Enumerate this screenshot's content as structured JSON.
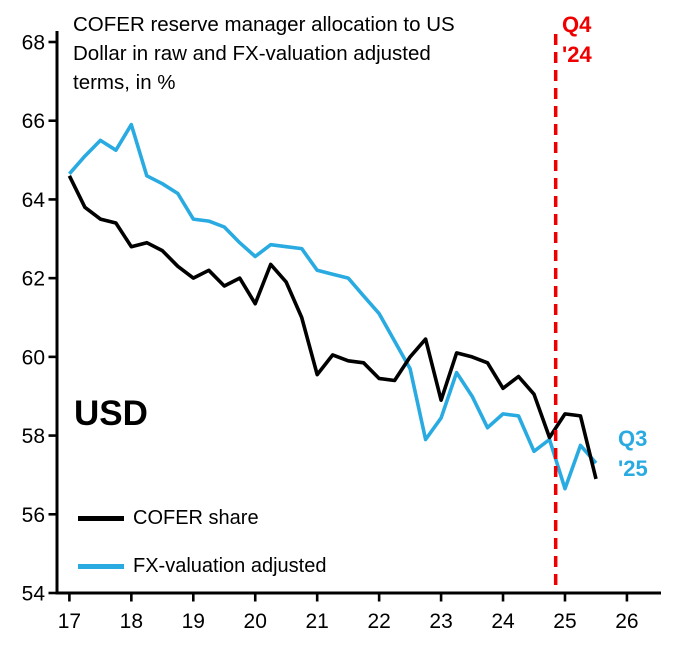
{
  "title": "COFER reserve manager allocation to US\nDollar in raw and FX-valuation adjusted\nterms, in %",
  "labels": {
    "usd": "USD"
  },
  "annotations": {
    "q4": {
      "line1": "Q4",
      "line2": "'24",
      "color": "#ee0000"
    },
    "q3": {
      "line1": "Q3",
      "line2": "'25",
      "color": "#29abe2"
    }
  },
  "chart_data": {
    "type": "line",
    "title": "COFER reserve manager allocation to US Dollar in raw and FX-valuation adjusted terms, in %",
    "xlabel": "",
    "ylabel": "",
    "x": [
      17.0,
      17.25,
      17.5,
      17.75,
      18.0,
      18.25,
      18.5,
      18.75,
      19.0,
      19.25,
      19.5,
      19.75,
      20.0,
      20.25,
      20.5,
      20.75,
      21.0,
      21.25,
      21.5,
      21.75,
      22.0,
      22.25,
      22.5,
      22.75,
      23.0,
      23.25,
      23.5,
      23.75,
      24.0,
      24.25,
      24.5,
      24.75,
      25.0,
      25.25,
      25.5
    ],
    "series": [
      {
        "name": "COFER share",
        "color": "#000000",
        "values": [
          64.6,
          63.8,
          63.5,
          63.4,
          62.8,
          62.9,
          62.7,
          62.3,
          62.0,
          62.2,
          61.8,
          62.0,
          61.35,
          62.35,
          61.9,
          61.0,
          59.55,
          60.05,
          59.9,
          59.85,
          59.45,
          59.4,
          60.0,
          60.45,
          58.9,
          60.1,
          60.0,
          59.85,
          59.2,
          59.5,
          59.05,
          57.95,
          58.55,
          58.5,
          56.9
        ]
      },
      {
        "name": "FX-valuation adjusted",
        "color": "#29abe2",
        "values": [
          64.65,
          65.1,
          65.5,
          65.25,
          65.9,
          64.6,
          64.4,
          64.15,
          63.5,
          63.45,
          63.3,
          62.9,
          62.55,
          62.85,
          62.8,
          62.75,
          62.2,
          62.1,
          62.0,
          61.55,
          61.1,
          60.4,
          59.7,
          57.9,
          58.45,
          59.6,
          59.0,
          58.2,
          58.55,
          58.5,
          57.6,
          57.9,
          56.65,
          57.75,
          57.3
        ]
      }
    ],
    "axes": {
      "xlim": [
        16.8,
        26.55
      ],
      "ylim": [
        54,
        68
      ],
      "xticks": [
        17,
        18,
        19,
        20,
        21,
        22,
        23,
        24,
        25,
        26
      ],
      "yticks": [
        54,
        56,
        58,
        60,
        62,
        64,
        66,
        68
      ],
      "grid": false
    },
    "vline": {
      "x": 24.85,
      "color": "#ee0000",
      "style": "dashed",
      "label": "Q4 '24"
    },
    "legend_position": "lower-left-inside"
  }
}
